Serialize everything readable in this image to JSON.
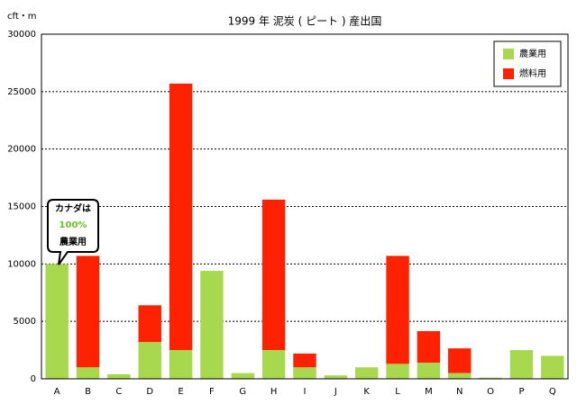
{
  "chart_data": {
    "type": "bar",
    "stacked": true,
    "title": "1999 年 泥炭 ( ピート ) 産出国",
    "y_label": "cft・m",
    "categories": [
      "A",
      "B",
      "C",
      "D",
      "E",
      "F",
      "G",
      "H",
      "I",
      "J",
      "K",
      "L",
      "M",
      "N",
      "O",
      "P",
      "Q"
    ],
    "series": [
      {
        "name": "農業用",
        "color": "#a8d84e",
        "values": [
          10000,
          1000,
          400,
          3200,
          2500,
          9400,
          500,
          2500,
          1000,
          300,
          1000,
          1300,
          1400,
          500,
          100,
          2500,
          2000
        ]
      },
      {
        "name": "燃料用",
        "color": "#ff2200",
        "values": [
          0,
          9700,
          0,
          3200,
          23200,
          0,
          0,
          13100,
          1200,
          0,
          0,
          9400,
          2750,
          2150,
          0,
          0,
          0
        ]
      }
    ],
    "ylim": [
      0,
      30000
    ],
    "yticks": [
      0,
      5000,
      10000,
      15000,
      20000,
      25000,
      30000
    ],
    "grid": true,
    "legend": "upper right",
    "annotation": {
      "lines": [
        "カナダは",
        "100%",
        "農業用"
      ],
      "color": "#6cc02a"
    }
  }
}
